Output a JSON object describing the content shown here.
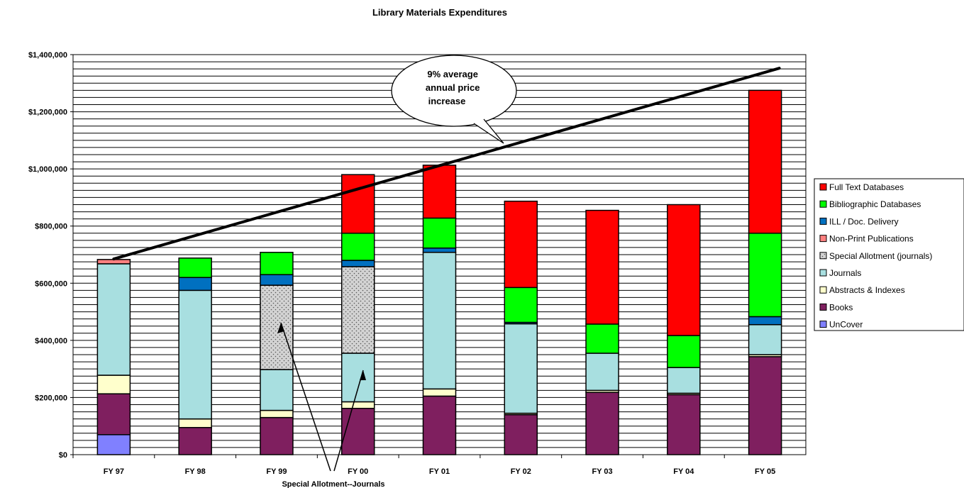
{
  "chart_data": {
    "type": "bar",
    "stacked": true,
    "title": "Library Materials Expenditures",
    "xlabel": "",
    "ylabel": "",
    "ylim": [
      0,
      1400000
    ],
    "ytick_step": 200000,
    "ytick_labels": [
      "$0",
      "$200,000",
      "$400,000",
      "$600,000",
      "$800,000",
      "$1,000,000",
      "$1,200,000",
      "$1,400,000"
    ],
    "grid": "horizontal",
    "legend_position": "right",
    "categories": [
      "FY 97",
      "FY 98",
      "FY 99",
      "FY 00",
      "FY 01",
      "FY 02",
      "FY 03",
      "FY 04",
      "FY 05"
    ],
    "series": [
      {
        "name": "UnCover",
        "color": "#8080FF",
        "pattern": "none",
        "values": [
          70000,
          0,
          0,
          0,
          0,
          0,
          0,
          0,
          0
        ]
      },
      {
        "name": "Books",
        "color": "#7F1F5F",
        "pattern": "none",
        "values": [
          143000,
          95000,
          130000,
          162000,
          205000,
          140000,
          218000,
          210000,
          343000
        ]
      },
      {
        "name": "Abstracts & Indexes",
        "color": "#FFFFCC",
        "pattern": "none",
        "values": [
          65000,
          30000,
          25000,
          23000,
          25000,
          5000,
          7000,
          5000,
          7000
        ]
      },
      {
        "name": "Journals",
        "color": "#A8DFE0",
        "pattern": "none",
        "values": [
          390000,
          450000,
          143000,
          170000,
          478000,
          313000,
          130000,
          90000,
          105000
        ]
      },
      {
        "name": "Special Allotment (journals)",
        "color": "#D3D3D3",
        "pattern": "dots",
        "values": [
          0,
          0,
          295000,
          303000,
          0,
          0,
          0,
          0,
          0
        ]
      },
      {
        "name": "Non-Print Publications",
        "color": "#FF8080",
        "pattern": "none",
        "values": [
          15000,
          0,
          0,
          0,
          0,
          0,
          0,
          0,
          0
        ]
      },
      {
        "name": "ILL / Doc. Delivery",
        "color": "#0070C0",
        "pattern": "none",
        "values": [
          0,
          45000,
          37000,
          22000,
          15000,
          5000,
          0,
          0,
          28000
        ]
      },
      {
        "name": "Bibliographic Databases",
        "color": "#00FF00",
        "pattern": "none",
        "values": [
          0,
          68000,
          78000,
          95000,
          105000,
          122000,
          102000,
          112000,
          292000
        ]
      },
      {
        "name": "Full Text Databases",
        "color": "#FF0000",
        "pattern": "none",
        "values": [
          0,
          0,
          0,
          205000,
          185000,
          302000,
          398000,
          458000,
          500000
        ]
      }
    ],
    "legend_order": [
      "Full Text Databases",
      "Bibliographic Databases",
      "ILL / Doc. Delivery",
      "Non-Print Publications",
      "Special Allotment (journals)",
      "Journals",
      "Abstracts & Indexes",
      "Books",
      "UnCover"
    ],
    "trend_line": {
      "from": {
        "category": "FY 97",
        "value": 685000
      },
      "to": {
        "category": "FY 05",
        "value": 1345000
      }
    },
    "annotations": [
      {
        "id": "callout",
        "lines": [
          "9% average",
          "annual price",
          "increase"
        ]
      },
      {
        "id": "special-allotment",
        "text": "Special Allotment--Journals"
      }
    ]
  }
}
